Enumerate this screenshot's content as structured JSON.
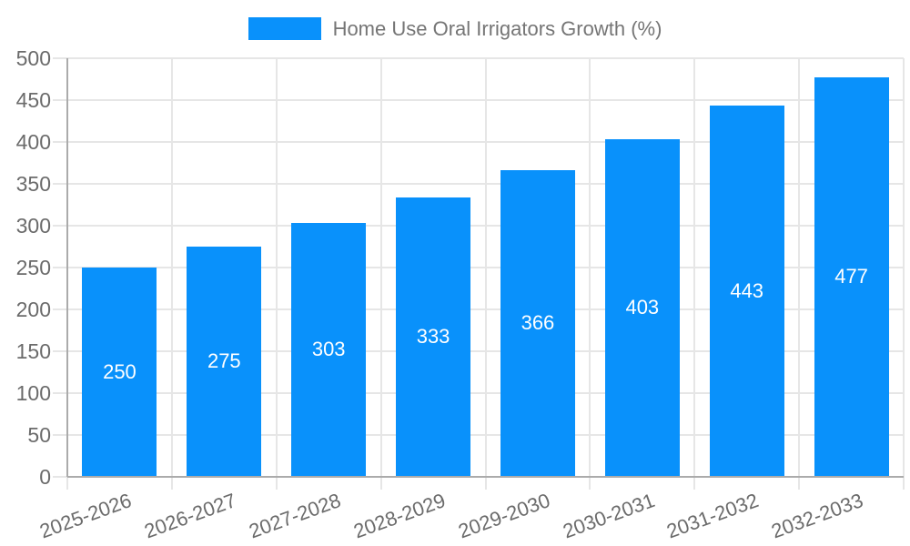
{
  "chart_data": {
    "type": "bar",
    "title": "",
    "series_name": "Home Use Oral Irrigators Growth (%)",
    "categories": [
      "2025-2026",
      "2026-2027",
      "2027-2028",
      "2028-2029",
      "2029-2030",
      "2030-2031",
      "2031-2032",
      "2032-2033"
    ],
    "values": [
      250,
      275,
      303,
      333,
      366,
      403,
      443,
      477
    ],
    "xlabel": "",
    "ylabel": "",
    "ylim": [
      0,
      500
    ],
    "ytick_step": 50,
    "grid": true,
    "legend_position": "top",
    "value_labels": "inside-center"
  },
  "legend": {
    "label": "Home Use Oral Irrigators Growth (%)"
  },
  "colors": {
    "bar": "#0991fb",
    "bar_value_label": "#ffffff",
    "gridline": "#e6e6e6",
    "axis_line": "#ababab",
    "axis_text": "#6b6b6b",
    "legend_text": "#757575",
    "background": "#ffffff"
  }
}
